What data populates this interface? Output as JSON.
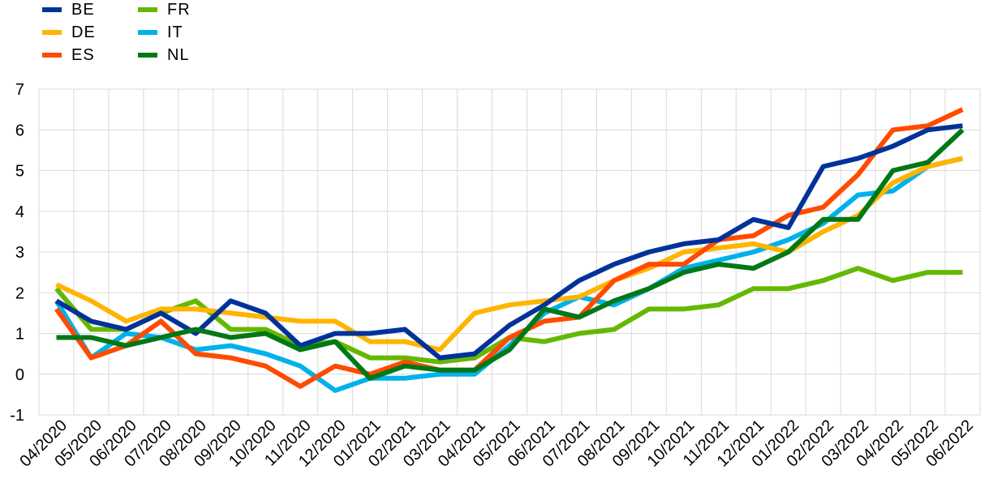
{
  "chart_data": {
    "type": "line",
    "categories": [
      "04/2020",
      "05/2020",
      "06/2020",
      "07/2020",
      "08/2020",
      "09/2020",
      "10/2020",
      "11/2020",
      "12/2020",
      "01/2021",
      "02/2021",
      "03/2021",
      "04/2021",
      "05/2021",
      "06/2021",
      "07/2021",
      "08/2021",
      "09/2021",
      "10/2021",
      "11/2021",
      "12/2021",
      "01/2022",
      "02/2022",
      "03/2022",
      "04/2022",
      "05/2022",
      "06/2022"
    ],
    "ylim": [
      -1,
      7
    ],
    "yticks": [
      -1,
      0,
      1,
      2,
      3,
      4,
      5,
      6,
      7
    ],
    "grid": true,
    "legend_position": "top-left",
    "series": [
      {
        "name": "BE",
        "color": "#003299",
        "values": [
          1.8,
          1.3,
          1.1,
          1.5,
          1.0,
          1.8,
          1.5,
          0.7,
          1.0,
          1.0,
          1.1,
          0.4,
          0.5,
          1.2,
          1.7,
          2.3,
          2.7,
          3.0,
          3.2,
          3.3,
          3.8,
          3.6,
          5.1,
          5.3,
          5.6,
          6.0,
          6.1
        ]
      },
      {
        "name": "DE",
        "color": "#FFB400",
        "values": [
          2.2,
          1.8,
          1.3,
          1.6,
          1.6,
          1.5,
          1.4,
          1.3,
          1.3,
          0.8,
          0.8,
          0.6,
          1.5,
          1.7,
          1.8,
          1.9,
          2.3,
          2.6,
          3.0,
          3.1,
          3.2,
          3.0,
          3.5,
          3.9,
          4.7,
          5.1,
          5.3
        ]
      },
      {
        "name": "ES",
        "color": "#FF4B00",
        "values": [
          1.6,
          0.4,
          0.7,
          1.3,
          0.5,
          0.4,
          0.2,
          -0.3,
          0.2,
          0.0,
          0.3,
          0.1,
          0.1,
          0.9,
          1.3,
          1.4,
          2.3,
          2.7,
          2.7,
          3.3,
          3.4,
          3.9,
          4.1,
          4.9,
          6.0,
          6.1,
          6.5
        ]
      },
      {
        "name": "FR",
        "color": "#65B800",
        "values": [
          2.1,
          1.1,
          1.1,
          1.5,
          1.8,
          1.1,
          1.1,
          0.7,
          0.8,
          0.4,
          0.4,
          0.3,
          0.4,
          0.9,
          0.8,
          1.0,
          1.1,
          1.6,
          1.6,
          1.7,
          2.1,
          2.1,
          2.3,
          2.6,
          2.3,
          2.5,
          2.5
        ]
      },
      {
        "name": "IT",
        "color": "#00B1EA",
        "values": [
          1.8,
          0.4,
          1.0,
          0.9,
          0.6,
          0.7,
          0.5,
          0.2,
          -0.4,
          -0.1,
          -0.1,
          0.0,
          0.0,
          0.7,
          1.5,
          1.9,
          1.7,
          2.1,
          2.6,
          2.8,
          3.0,
          3.3,
          3.7,
          4.4,
          4.5,
          5.1,
          5.3
        ]
      },
      {
        "name": "NL",
        "color": "#007816",
        "values": [
          0.9,
          0.9,
          0.7,
          0.9,
          1.1,
          0.9,
          1.0,
          0.6,
          0.8,
          -0.1,
          0.2,
          0.1,
          0.1,
          0.6,
          1.6,
          1.4,
          1.8,
          2.1,
          2.5,
          2.7,
          2.6,
          3.0,
          3.8,
          3.8,
          5.0,
          5.2,
          6.0
        ]
      }
    ]
  }
}
